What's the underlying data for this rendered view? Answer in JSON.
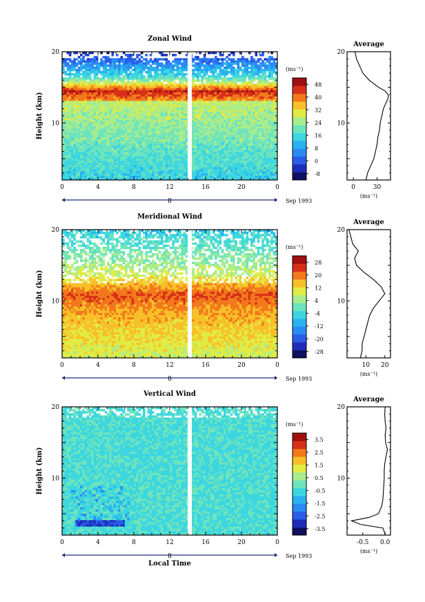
{
  "chart_data": [
    {
      "type": "heatmap",
      "title": "Zonal Wind",
      "ylabel": "Height (km)",
      "y_ticks": [
        "20",
        "10"
      ],
      "ylim": [
        2,
        20
      ],
      "x_ticks": [
        "0",
        "4",
        "8",
        "12",
        "16",
        "20",
        "0"
      ],
      "xlim": [
        0,
        24
      ],
      "date_axis_ticks": [
        "8"
      ],
      "date_axis_label": "Sep 1993",
      "colorbar_unit": "(ms⁻¹)",
      "colorbar_ticks": [
        "48",
        "40",
        "32",
        "24",
        "16",
        "8",
        "0",
        "-8"
      ],
      "colorbar_range": [
        -12,
        52
      ],
      "colors": [
        "#101060",
        "#1c2eb8",
        "#2a5de8",
        "#2a8af2",
        "#28b2f0",
        "#3cd6e0",
        "#6ee4bc",
        "#a8ec8e",
        "#e0ec44",
        "#f8c028",
        "#f2781c",
        "#d83018",
        "#a01010"
      ],
      "data_gap_local_time": 14,
      "average_profile": {
        "title": "Average",
        "x_ticks": [
          "0",
          "30"
        ],
        "xlabel": "(ms⁻¹)",
        "y_ticks": [
          "20",
          "10"
        ],
        "xlim": [
          -8,
          47
        ],
        "height_km": [
          2,
          3,
          4,
          5,
          6,
          7,
          8,
          9,
          10,
          11,
          12,
          13,
          13.5,
          14,
          14.5,
          15,
          16,
          17,
          18,
          19,
          20
        ],
        "value": [
          16,
          18,
          22,
          26,
          28,
          30,
          31,
          33,
          34,
          36,
          38,
          42,
          44,
          44,
          40,
          32,
          20,
          12,
          8,
          4,
          2
        ]
      }
    },
    {
      "type": "heatmap",
      "title": "Meridional Wind",
      "ylabel": "Height (km)",
      "y_ticks": [
        "20",
        "10"
      ],
      "ylim": [
        2,
        20
      ],
      "x_ticks": [
        "0",
        "4",
        "8",
        "12",
        "16",
        "20",
        "0"
      ],
      "xlim": [
        0,
        24
      ],
      "date_axis_ticks": [
        "8"
      ],
      "date_axis_label": "Sep 1993",
      "colorbar_unit": "(ms⁻¹)",
      "colorbar_ticks": [
        "28",
        "20",
        "12",
        "4",
        "-4",
        "-12",
        "-20",
        "-28"
      ],
      "colorbar_range": [
        -32,
        32
      ],
      "colors": [
        "#101060",
        "#1c2eb8",
        "#2a5de8",
        "#2a8af2",
        "#28b2f0",
        "#3cd6e0",
        "#6ee4bc",
        "#a8ec8e",
        "#e0ec44",
        "#f8c028",
        "#f2781c",
        "#d83018",
        "#a01010"
      ],
      "data_gap_local_time": 14,
      "average_profile": {
        "title": "Average",
        "x_ticks": [
          "10",
          "20"
        ],
        "xlabel": "(ms⁻¹)",
        "y_ticks": [
          "20",
          "10"
        ],
        "xlim": [
          0,
          23
        ],
        "height_km": [
          2,
          3,
          4,
          5,
          6,
          7,
          8,
          9,
          10,
          11,
          12,
          13,
          14,
          15,
          16,
          17,
          18,
          19,
          20
        ],
        "value": [
          7,
          8,
          8,
          9,
          10,
          11,
          12,
          14,
          17,
          20,
          18,
          14,
          9,
          5,
          4,
          6,
          3,
          2,
          1
        ]
      }
    },
    {
      "type": "heatmap",
      "title": "Vertical Wind",
      "xlabel": "Local Time",
      "ylabel": "Height (km)",
      "y_ticks": [
        "20",
        "10"
      ],
      "ylim": [
        2,
        20
      ],
      "x_ticks": [
        "0",
        "4",
        "8",
        "12",
        "16",
        "20",
        "0"
      ],
      "xlim": [
        0,
        24
      ],
      "date_axis_ticks": [
        "8"
      ],
      "date_axis_label": "Sep 1993",
      "colorbar_unit": "(ms⁻¹)",
      "colorbar_ticks": [
        "3.5",
        "2.5",
        "1.5",
        "0.5",
        "-0.5",
        "-1.5",
        "-2.5",
        "-3.5"
      ],
      "colorbar_range": [
        -4,
        4
      ],
      "colors": [
        "#101060",
        "#1c2eb8",
        "#2a5de8",
        "#2a8af2",
        "#28b2f0",
        "#3cd6e0",
        "#6ee4bc",
        "#a8ec8e",
        "#e0ec44",
        "#f8c028",
        "#f2781c",
        "#d83018",
        "#a01010"
      ],
      "data_gap_local_time": 14,
      "average_profile": {
        "title": "Average",
        "x_ticks": [
          "-0.5",
          "0.0"
        ],
        "xlabel": "(ms⁻¹)",
        "y_ticks": [
          "20",
          "10"
        ],
        "xlim": [
          -0.85,
          0.12
        ],
        "height_km": [
          2,
          2.5,
          3,
          3.5,
          4,
          4.5,
          5,
          6,
          7,
          8,
          9,
          10,
          11,
          12,
          13,
          14,
          15,
          16,
          17,
          18,
          19,
          20
        ],
        "value": [
          0.0,
          -0.02,
          -0.05,
          -0.55,
          -0.75,
          -0.35,
          -0.15,
          -0.08,
          -0.05,
          -0.04,
          -0.03,
          -0.02,
          -0.02,
          -0.01,
          0.02,
          0.05,
          0.01,
          0.0,
          0.02,
          0.0,
          -0.01,
          0.0
        ]
      }
    }
  ]
}
